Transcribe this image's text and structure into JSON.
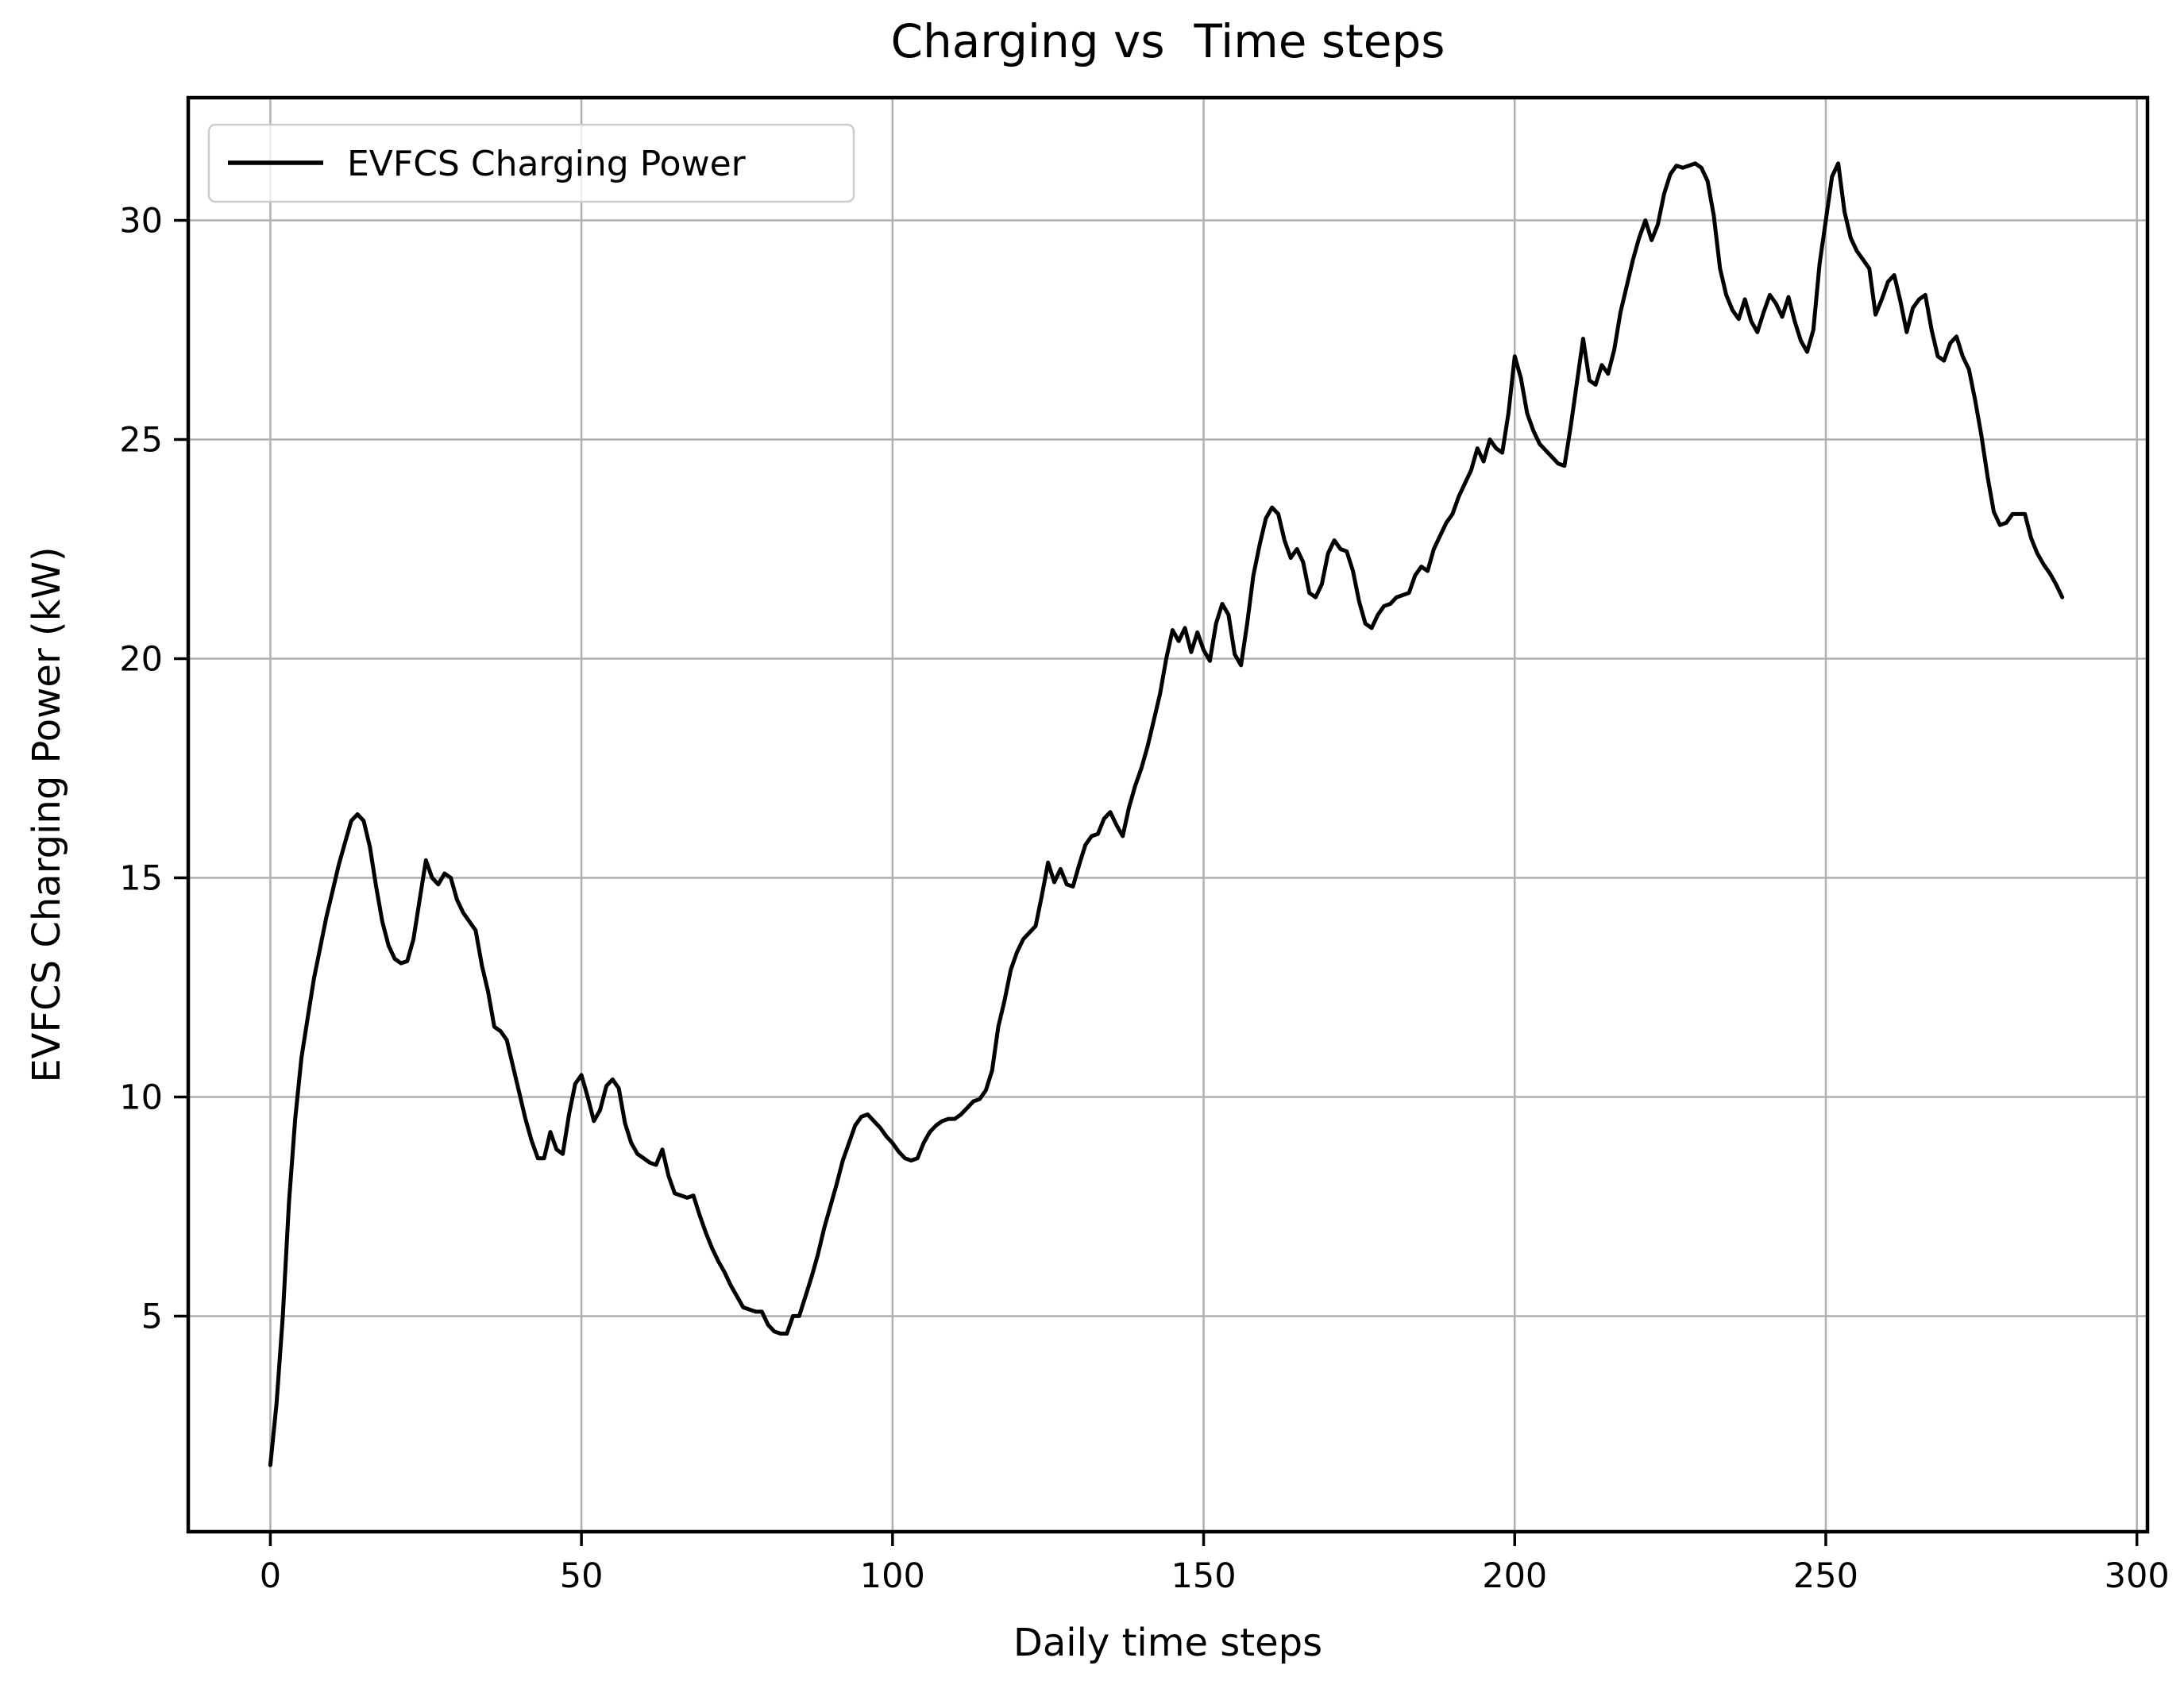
{
  "figure": {
    "title": "Charging vs  Time steps",
    "xlabel": "Daily time steps",
    "ylabel": "EVFCS Charging Power (kW)",
    "legend": {
      "label": "EVFCS Charging Power",
      "position": "upper left"
    },
    "colors": {
      "line": "#000000",
      "grid": "#b0b0b0",
      "spine": "#000000",
      "text": "#000000",
      "legend_border": "#cccccc",
      "legend_background": "#ffffff",
      "background": "#ffffff"
    }
  },
  "chart_data": {
    "type": "line",
    "title": "Charging vs  Time steps",
    "xlabel": "Daily time steps",
    "ylabel": "EVFCS Charging Power (kW)",
    "legend": [
      "EVFCS Charging Power"
    ],
    "legend_position": "upper left",
    "grid": true,
    "line_color": "#000000",
    "xlim": [
      -13.2,
      301.7
    ],
    "ylim": [
      0.08,
      32.8
    ],
    "xticks": [
      0,
      50,
      100,
      150,
      200,
      250,
      300
    ],
    "yticks": [
      5,
      10,
      15,
      20,
      25,
      30
    ],
    "x_start": 0,
    "x_step": 1,
    "values": [
      1.6,
      3.0,
      5.0,
      7.6,
      9.5,
      10.9,
      11.8,
      12.7,
      13.4,
      14.1,
      14.7,
      15.3,
      15.8,
      16.3,
      16.45,
      16.3,
      15.7,
      14.8,
      14.0,
      13.45,
      13.15,
      13.05,
      13.1,
      13.6,
      14.5,
      15.4,
      15.0,
      14.85,
      15.1,
      15.0,
      14.5,
      14.2,
      14.0,
      13.8,
      13.0,
      12.4,
      11.6,
      11.5,
      11.3,
      10.7,
      10.1,
      9.5,
      9.0,
      8.6,
      8.6,
      9.2,
      8.8,
      8.7,
      9.6,
      10.3,
      10.5,
      10.0,
      9.45,
      9.7,
      10.25,
      10.4,
      10.2,
      9.4,
      8.95,
      8.7,
      8.6,
      8.5,
      8.45,
      8.8,
      8.2,
      7.8,
      7.75,
      7.7,
      7.75,
      7.3,
      6.9,
      6.55,
      6.25,
      6.0,
      5.7,
      5.45,
      5.2,
      5.15,
      5.1,
      5.1,
      4.8,
      4.65,
      4.6,
      4.6,
      5.0,
      5.0,
      5.45,
      5.9,
      6.4,
      7.0,
      7.5,
      8.0,
      8.55,
      8.95,
      9.35,
      9.55,
      9.6,
      9.45,
      9.3,
      9.1,
      8.95,
      8.75,
      8.6,
      8.55,
      8.6,
      8.95,
      9.2,
      9.35,
      9.45,
      9.5,
      9.5,
      9.6,
      9.75,
      9.9,
      9.95,
      10.15,
      10.6,
      11.6,
      12.2,
      12.9,
      13.3,
      13.6,
      13.75,
      13.9,
      14.6,
      15.35,
      14.9,
      15.2,
      14.85,
      14.8,
      15.3,
      15.75,
      15.95,
      16.0,
      16.35,
      16.5,
      16.2,
      15.95,
      16.6,
      17.1,
      17.5,
      18.0,
      18.6,
      19.2,
      20.0,
      20.65,
      20.4,
      20.7,
      20.15,
      20.6,
      20.2,
      19.95,
      20.8,
      21.25,
      21.0,
      20.1,
      19.85,
      20.8,
      21.9,
      22.6,
      23.2,
      23.45,
      23.3,
      22.7,
      22.3,
      22.5,
      22.2,
      21.5,
      21.4,
      21.7,
      22.4,
      22.7,
      22.5,
      22.45,
      22.0,
      21.3,
      20.8,
      20.7,
      21.0,
      21.2,
      21.25,
      21.4,
      21.45,
      21.5,
      21.9,
      22.1,
      22.0,
      22.5,
      22.8,
      23.1,
      23.3,
      23.7,
      24.0,
      24.3,
      24.8,
      24.5,
      25.0,
      24.8,
      24.7,
      25.6,
      26.9,
      26.4,
      25.6,
      25.2,
      24.9,
      24.75,
      24.6,
      24.45,
      24.4,
      25.3,
      26.3,
      27.3,
      26.35,
      26.25,
      26.7,
      26.5,
      27.05,
      27.9,
      28.5,
      29.1,
      29.6,
      30.0,
      29.55,
      29.9,
      30.6,
      31.05,
      31.25,
      31.2,
      31.25,
      31.3,
      31.2,
      30.9,
      30.1,
      28.9,
      28.3,
      27.95,
      27.75,
      28.2,
      27.7,
      27.45,
      27.9,
      28.3,
      28.1,
      27.8,
      28.25,
      27.7,
      27.25,
      27.0,
      27.5,
      29.0,
      30.0,
      31.0,
      31.3,
      30.2,
      29.6,
      29.3,
      29.1,
      28.9,
      27.85,
      28.2,
      28.6,
      28.75,
      28.15,
      27.45,
      28.0,
      28.2,
      28.3,
      27.5,
      26.9,
      26.8,
      27.2,
      27.35,
      26.9,
      26.6,
      25.9,
      25.1,
      24.15,
      23.35,
      23.05,
      23.1,
      23.3,
      23.3,
      23.3,
      22.75,
      22.4,
      22.15,
      21.95,
      21.7,
      21.4
    ]
  }
}
